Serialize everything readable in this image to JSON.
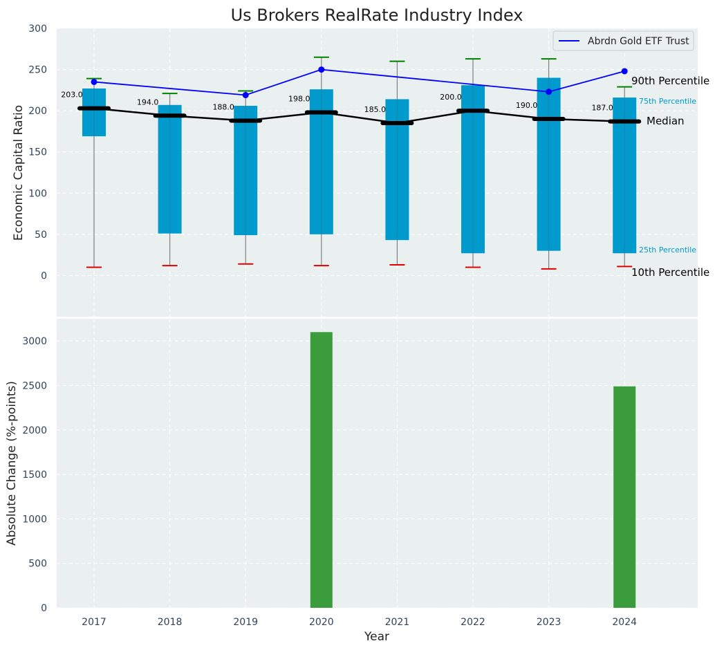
{
  "chart_data": [
    {
      "type": "box",
      "title": "Us Brokers RealRate Industry Index",
      "ylabel": "Economic Capital Ratio",
      "xlabel": "",
      "ylim": [
        -50,
        300
      ],
      "yticks": [
        0,
        50,
        100,
        150,
        200,
        250,
        300
      ],
      "grid": true,
      "categories": [
        "2017",
        "2018",
        "2019",
        "2020",
        "2021",
        "2022",
        "2023",
        "2024"
      ],
      "p10": [
        10,
        12,
        14,
        12,
        13,
        10,
        8,
        11
      ],
      "p25": [
        169,
        51,
        49,
        50,
        43,
        27,
        30,
        27
      ],
      "median": [
        203.0,
        194.0,
        188.0,
        198.0,
        185.0,
        200.0,
        190.0,
        187.0
      ],
      "median_labels": [
        "203.0",
        "194.0",
        "188.0",
        "198.0",
        "185.0",
        "200.0",
        "190.0",
        "187.0"
      ],
      "p75": [
        227,
        207,
        206,
        226,
        214,
        231,
        240,
        216
      ],
      "p90": [
        239,
        221,
        224,
        265,
        260,
        263,
        263,
        229
      ],
      "series": [
        {
          "name": "Abrdn Gold ETF Trust",
          "x": [
            "2017",
            "2019",
            "2020",
            "2023",
            "2024"
          ],
          "values": [
            235,
            219,
            250,
            223,
            248
          ]
        }
      ],
      "legend": {
        "entries": [
          "Abrdn Gold ETF Trust"
        ],
        "position": "top-right"
      },
      "annotations": {
        "p90": "90th Percentile",
        "p75": "75th Percentile",
        "median": "Median",
        "p25": "25th Percentile",
        "p10": "10th Percentile"
      }
    },
    {
      "type": "bar",
      "title": "",
      "ylabel": "Absolute Change (%-points)",
      "xlabel": "Year",
      "ylim": [
        0,
        3250
      ],
      "yticks": [
        0,
        500,
        1000,
        1500,
        2000,
        2500,
        3000
      ],
      "grid": true,
      "categories": [
        "2017",
        "2018",
        "2019",
        "2020",
        "2021",
        "2022",
        "2023",
        "2024"
      ],
      "values": [
        0,
        0,
        0,
        3100,
        0,
        0,
        0,
        2490
      ]
    }
  ],
  "colors": {
    "panel_bg": "#eaeff0",
    "box": "#009acd",
    "median_line": "#000000",
    "series_line": "#0000ff",
    "p90_cap": "#008000",
    "p10_cap": "#e00000",
    "bar": "#3a9c3a",
    "whisker": "#808080",
    "tick_text": "#2f4257",
    "p75_label": "#009acd"
  }
}
